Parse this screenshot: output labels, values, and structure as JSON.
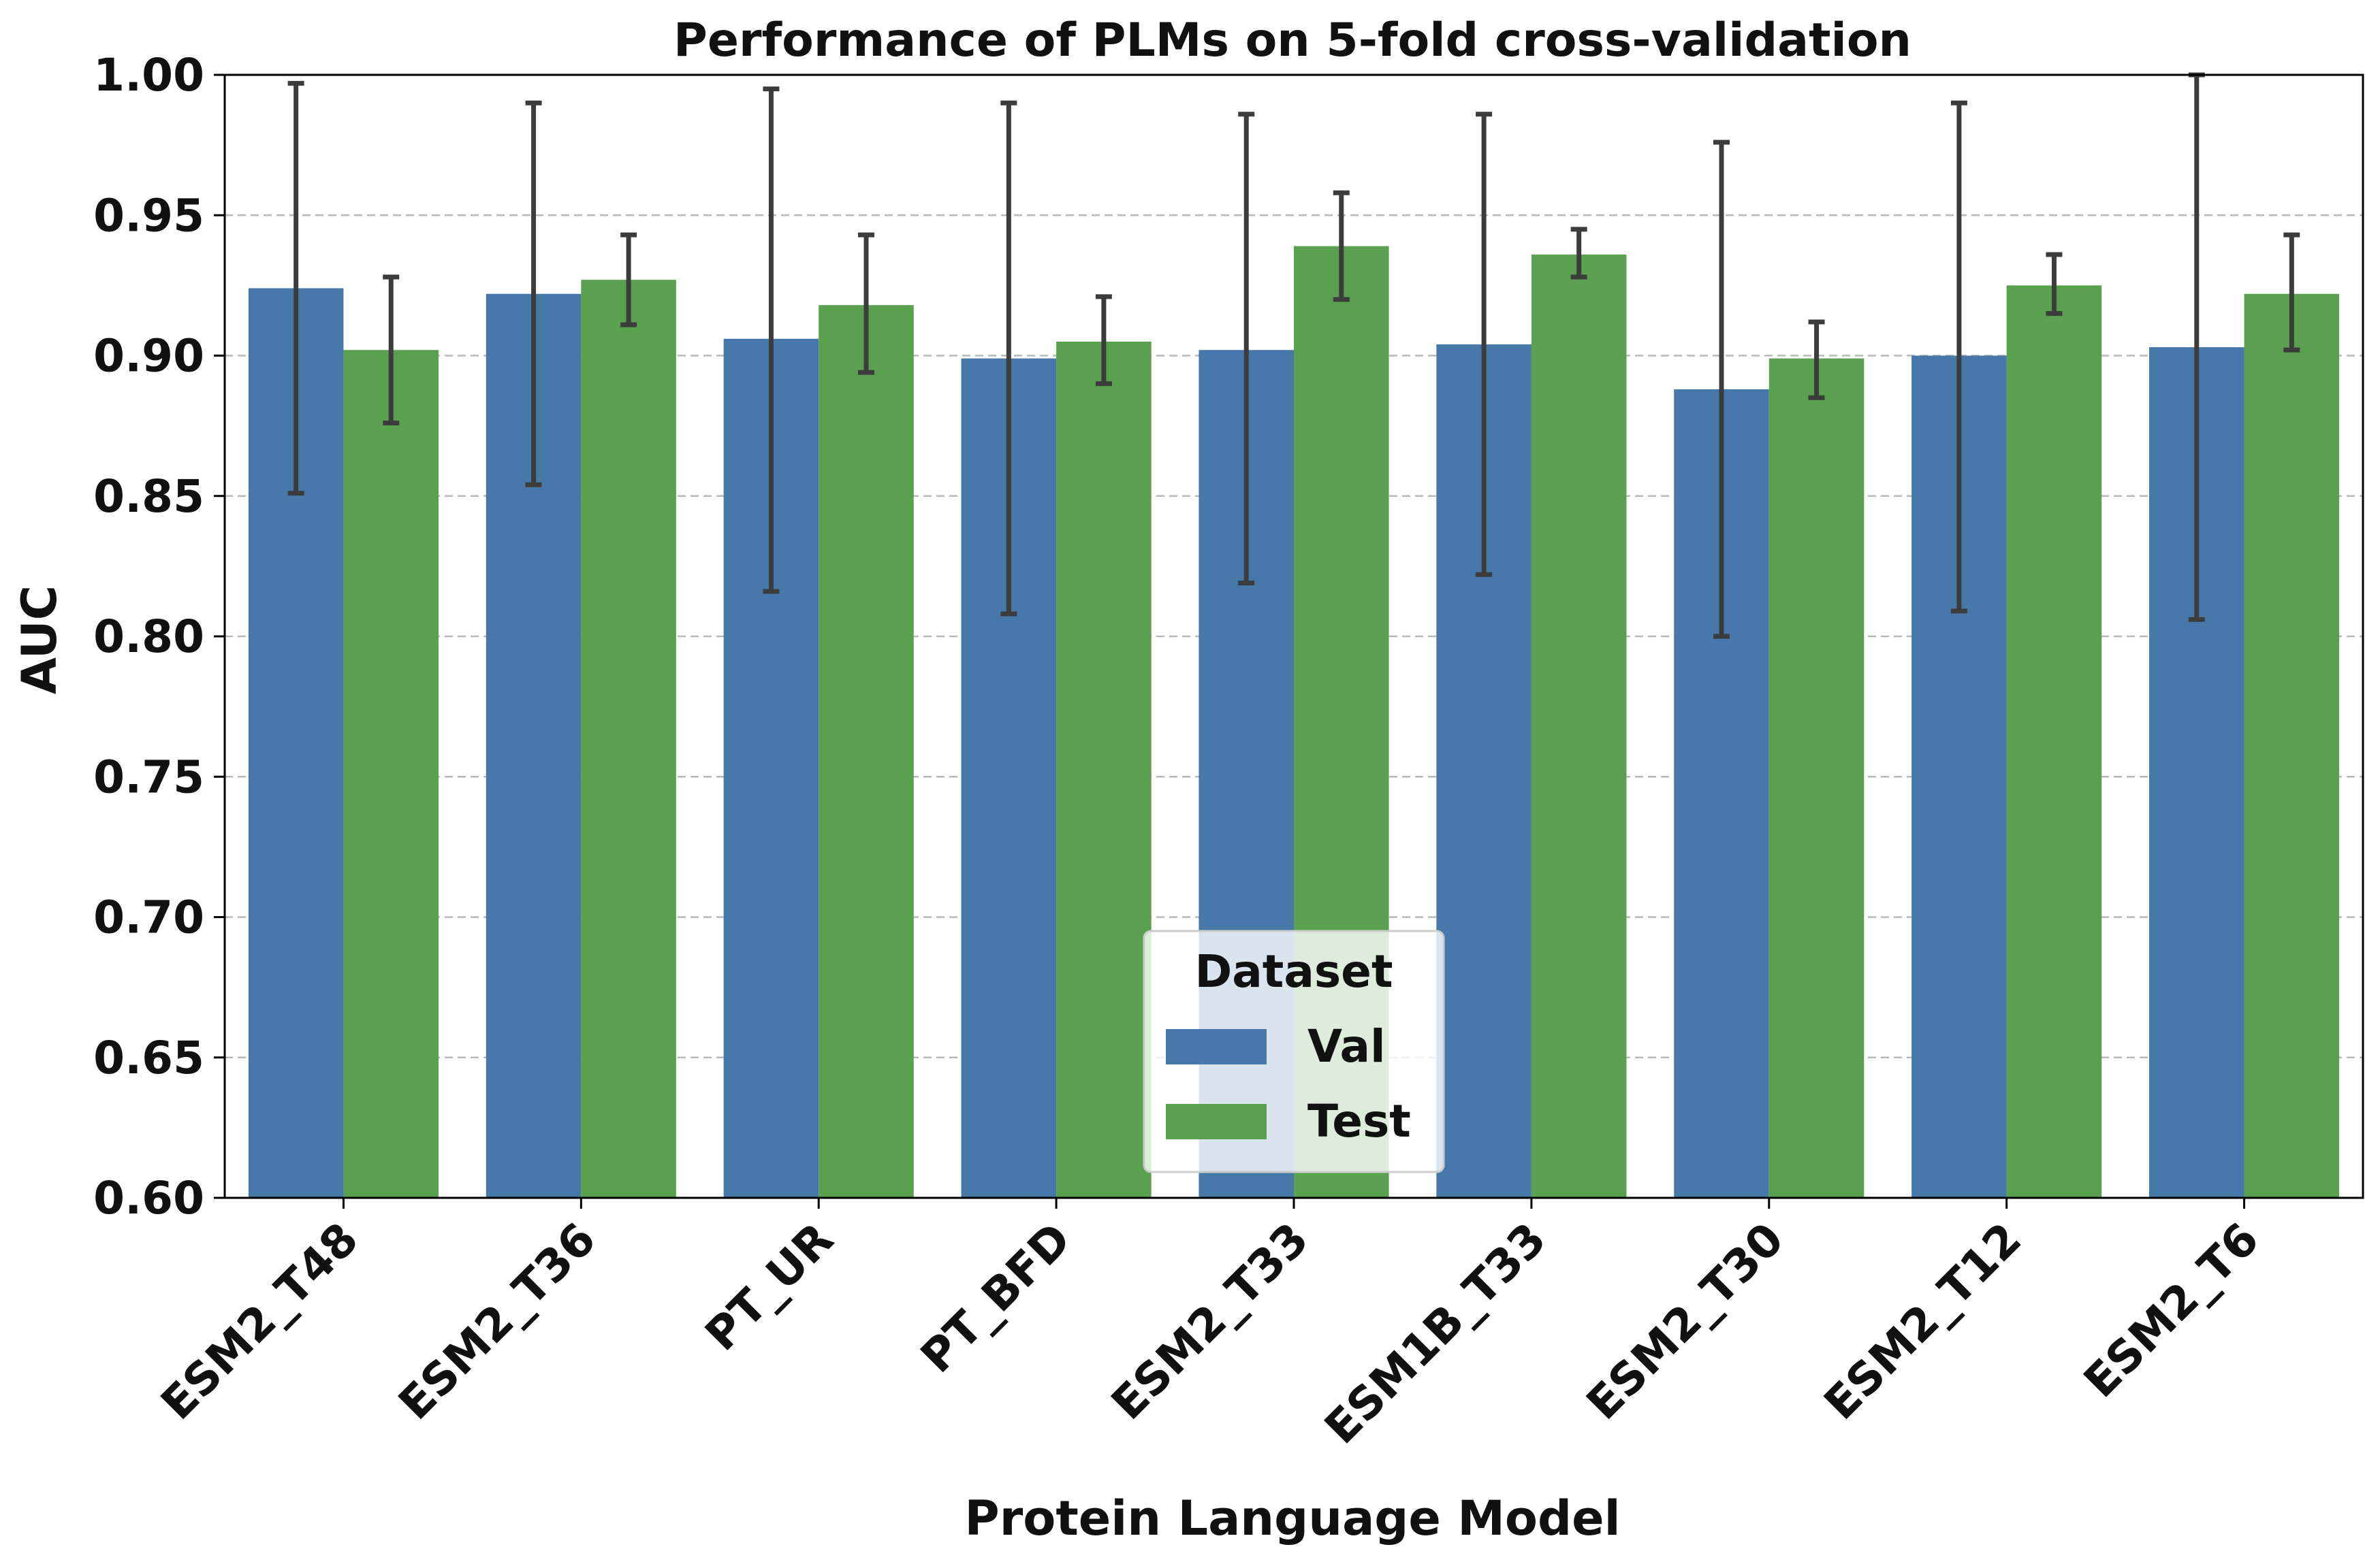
{
  "chart_data": {
    "type": "bar",
    "title": "Performance of PLMs on 5-fold cross-validation",
    "xlabel": "Protein Language Model",
    "ylabel": "AUC",
    "ylim": [
      0.6,
      1.0
    ],
    "yticks": [
      "0.60",
      "0.65",
      "0.70",
      "0.75",
      "0.80",
      "0.85",
      "0.90",
      "0.95",
      "1.00"
    ],
    "grid": "horizontal dashed",
    "categories": [
      "ESM2_T48",
      "ESM2_T36",
      "PT_UR",
      "PT_BFD",
      "ESM2_T33",
      "ESM1B_T33",
      "ESM2_T30",
      "ESM2_T12",
      "ESM2_T6"
    ],
    "series": [
      {
        "name": "Val",
        "color": "#4679AA",
        "values": [
          0.924,
          0.922,
          0.906,
          0.899,
          0.902,
          0.904,
          0.888,
          0.9,
          0.903
        ],
        "err_low": [
          0.851,
          0.854,
          0.816,
          0.808,
          0.819,
          0.822,
          0.8,
          0.809,
          0.806
        ],
        "err_high": [
          0.997,
          0.99,
          0.995,
          0.99,
          0.986,
          0.986,
          0.976,
          0.99,
          1.0
        ]
      },
      {
        "name": "Test",
        "color": "#59A14F",
        "values": [
          0.902,
          0.927,
          0.918,
          0.905,
          0.939,
          0.936,
          0.899,
          0.925,
          0.922
        ],
        "err_low": [
          0.876,
          0.911,
          0.894,
          0.89,
          0.92,
          0.928,
          0.885,
          0.915,
          0.902
        ],
        "err_high": [
          0.928,
          0.943,
          0.943,
          0.921,
          0.958,
          0.945,
          0.912,
          0.936,
          0.943
        ]
      }
    ],
    "legend": {
      "title": "Dataset",
      "placement": "bottom-center"
    }
  }
}
